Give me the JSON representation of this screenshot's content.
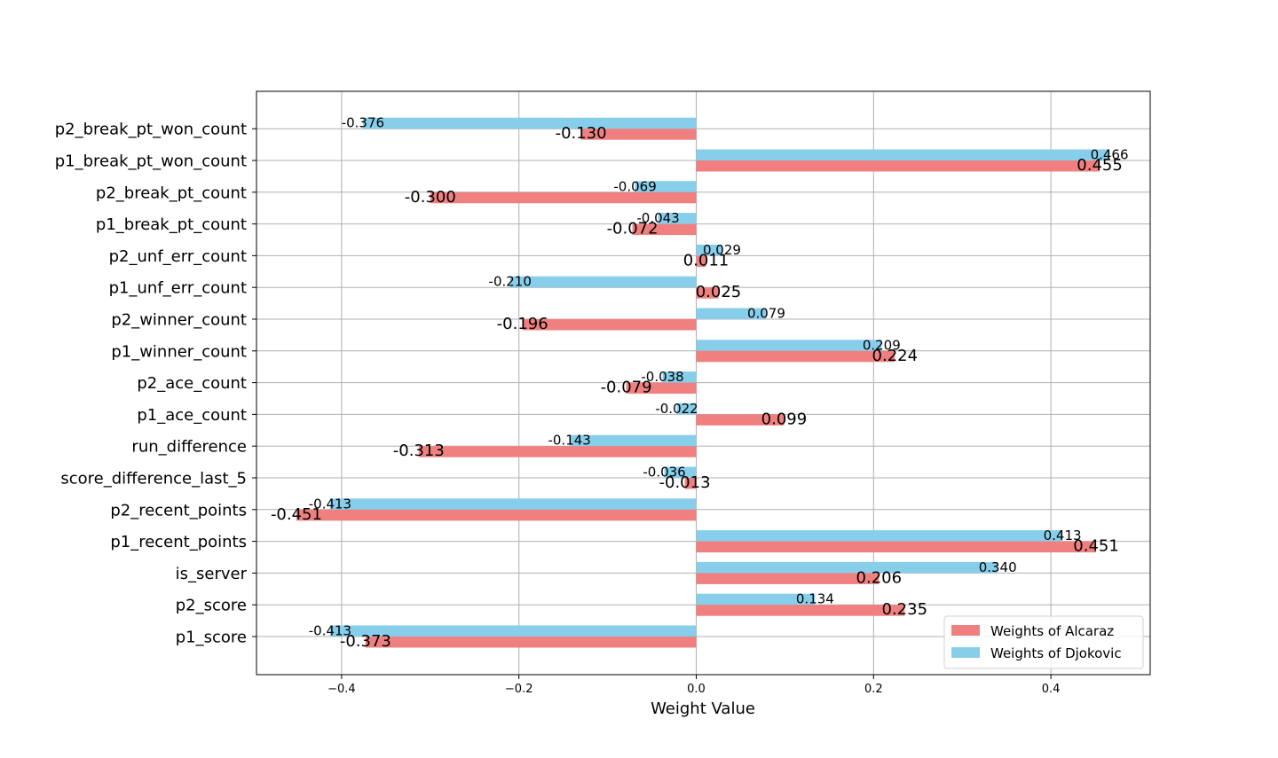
{
  "chart_data": {
    "type": "bar",
    "orientation": "horizontal",
    "categories": [
      "p1_score",
      "p2_score",
      "is_server",
      "p1_recent_points",
      "p2_recent_points",
      "score_difference_last_5",
      "run_difference",
      "p1_ace_count",
      "p2_ace_count",
      "p1_winner_count",
      "p2_winner_count",
      "p1_unf_err_count",
      "p2_unf_err_count",
      "p1_break_pt_count",
      "p2_break_pt_count",
      "p1_break_pt_won_count",
      "p2_break_pt_won_count"
    ],
    "series": [
      {
        "name": "Weights of Alcaraz",
        "color": "#f08080",
        "values": [
          -0.373,
          0.235,
          0.206,
          0.451,
          -0.451,
          -0.013,
          -0.313,
          0.099,
          -0.079,
          0.224,
          -0.196,
          0.025,
          0.011,
          -0.072,
          -0.3,
          0.455,
          -0.13
        ],
        "labels": [
          "-0.373",
          "0.235",
          "0.206",
          "0.451",
          "-0.451",
          "-0.013",
          "-0.313",
          "0.099",
          "-0.079",
          "0.224",
          "-0.196",
          "0.025",
          "0.011",
          "-0.072",
          "-0.300",
          "0.455",
          "-0.130"
        ]
      },
      {
        "name": "Weights of Djokovic",
        "color": "#87ceeb",
        "values": [
          -0.413,
          0.134,
          0.34,
          0.413,
          -0.413,
          -0.036,
          -0.143,
          -0.022,
          -0.038,
          0.209,
          0.079,
          -0.21,
          0.029,
          -0.043,
          -0.069,
          0.466,
          -0.376
        ],
        "labels": [
          "-0.413",
          "0.134",
          "0.340",
          "0.413",
          "-0.413",
          "-0.036",
          "-0.143",
          "-0.022",
          "-0.038",
          "0.209",
          "0.079",
          "-0.210",
          "0.029",
          "-0.043",
          "-0.069",
          "0.466",
          "-0.376"
        ]
      }
    ],
    "xlabel": "Weight Value",
    "ylabel": "",
    "title": "",
    "xlim": [
      -0.496,
      0.512
    ],
    "xticks": [
      -0.4,
      -0.2,
      0.0,
      0.2,
      0.4
    ],
    "xtick_labels": [
      "−0.4",
      "−0.2",
      "0.0",
      "0.2",
      "0.4"
    ],
    "grid": true,
    "legend_position": "lower-right"
  }
}
